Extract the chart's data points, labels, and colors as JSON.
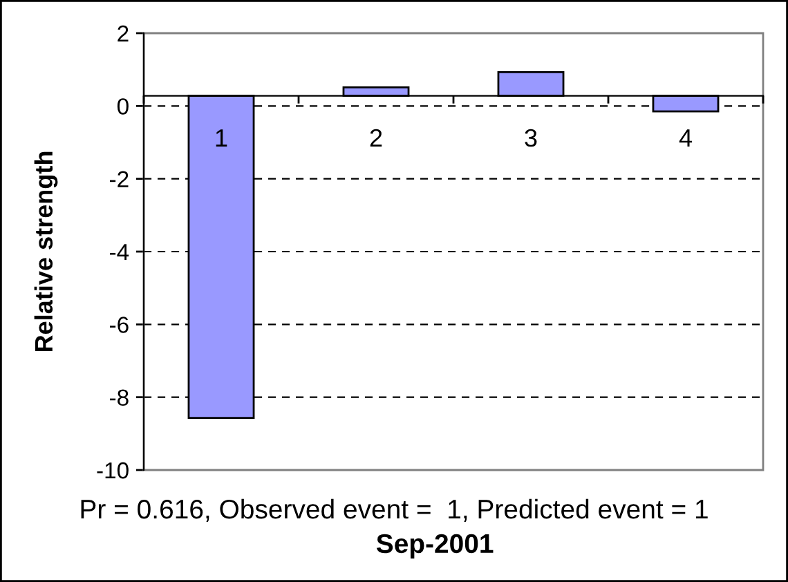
{
  "chart_data": {
    "type": "bar",
    "categories": [
      "1",
      "2",
      "3",
      "4"
    ],
    "values": [
      -8.85,
      0.23,
      0.65,
      -0.43
    ],
    "base": [
      0.28,
      0.28,
      0.28,
      0.28
    ],
    "color": "#9999ff",
    "ylabel": "Relative strength",
    "xlabel": "Sep-2001",
    "annotations": [
      "Pr = 0.616, Observed event =  1, Predicted event = 1"
    ],
    "ylim": [
      -10,
      2
    ],
    "yticks": [
      -10,
      -8,
      -6,
      -4,
      -2,
      0,
      2
    ],
    "grid": "y"
  }
}
